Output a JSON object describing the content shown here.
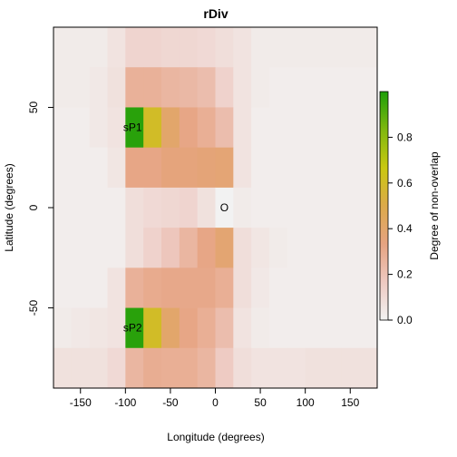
{
  "chart_data": {
    "type": "heatmap",
    "title": "rDiv",
    "xlabel": "Longitude (degrees)",
    "ylabel": "Latitude (degrees)",
    "xlim": [
      -180,
      180
    ],
    "ylim": [
      -90,
      90
    ],
    "x_ticks": [
      -150,
      -100,
      -50,
      0,
      50,
      100,
      150
    ],
    "y_ticks": [
      -50,
      0,
      50
    ],
    "x_tick_labels": [
      "-150",
      "-100",
      "-50",
      "0",
      "50",
      "100",
      "150"
    ],
    "y_tick_labels": [
      "-50",
      "0",
      "50"
    ],
    "cell_width_deg": 20,
    "cell_height_deg": 20,
    "x_centers": [
      -170,
      -150,
      -130,
      -110,
      -90,
      -70,
      -50,
      -30,
      -10,
      10,
      30,
      50,
      70,
      90,
      110,
      130,
      150,
      170
    ],
    "y_centers": [
      80,
      60,
      40,
      20,
      0,
      -20,
      -40,
      -60,
      -80
    ],
    "values": [
      [
        0.03,
        0.03,
        0.03,
        0.06,
        0.12,
        0.12,
        0.11,
        0.11,
        0.1,
        0.08,
        0.06,
        0.03,
        0.03,
        0.03,
        0.03,
        0.03,
        0.03,
        0.03
      ],
      [
        0.03,
        0.03,
        0.04,
        0.07,
        0.27,
        0.27,
        0.25,
        0.24,
        0.22,
        0.13,
        0.06,
        0.03,
        0.02,
        0.02,
        0.02,
        0.02,
        0.02,
        0.02
      ],
      [
        0.02,
        0.02,
        0.04,
        0.06,
        0.98,
        0.6,
        0.4,
        0.32,
        0.28,
        0.22,
        0.06,
        0.02,
        0.02,
        0.02,
        0.02,
        0.02,
        0.02,
        0.02
      ],
      [
        0.02,
        0.02,
        0.02,
        0.05,
        0.32,
        0.32,
        0.35,
        0.35,
        0.36,
        0.37,
        0.06,
        0.02,
        0.02,
        0.02,
        0.02,
        0.02,
        0.02,
        0.02
      ],
      [
        0.02,
        0.02,
        0.02,
        0.02,
        0.08,
        0.1,
        0.11,
        0.12,
        0.07,
        0.0,
        0.03,
        0.02,
        0.02,
        0.02,
        0.02,
        0.02,
        0.02,
        0.02
      ],
      [
        0.02,
        0.02,
        0.02,
        0.02,
        0.08,
        0.13,
        0.18,
        0.25,
        0.32,
        0.38,
        0.08,
        0.05,
        0.03,
        0.02,
        0.02,
        0.02,
        0.02,
        0.02
      ],
      [
        0.02,
        0.02,
        0.02,
        0.06,
        0.27,
        0.3,
        0.31,
        0.31,
        0.31,
        0.28,
        0.08,
        0.04,
        0.02,
        0.02,
        0.02,
        0.02,
        0.02,
        0.02
      ],
      [
        0.03,
        0.04,
        0.05,
        0.06,
        0.98,
        0.6,
        0.4,
        0.32,
        0.28,
        0.22,
        0.06,
        0.03,
        0.02,
        0.02,
        0.02,
        0.02,
        0.02,
        0.02
      ],
      [
        0.07,
        0.07,
        0.07,
        0.1,
        0.25,
        0.29,
        0.28,
        0.28,
        0.25,
        0.16,
        0.08,
        0.06,
        0.06,
        0.06,
        0.07,
        0.07,
        0.07,
        0.07
      ]
    ],
    "annotations": [
      {
        "label": "sP1",
        "x": -92,
        "y": 40
      },
      {
        "label": "O",
        "x": 10,
        "y": 0
      },
      {
        "label": "sP2",
        "x": -92,
        "y": -60
      }
    ],
    "colorbar": {
      "label": "Degree of non-overlap",
      "range": [
        0,
        1
      ],
      "ticks": [
        0.0,
        0.2,
        0.4,
        0.6,
        0.8
      ],
      "tick_labels": [
        "0.0",
        "0.2",
        "0.4",
        "0.6",
        "0.8"
      ],
      "palette": [
        "#f2f2f2",
        "#eec9c1",
        "#e6a381",
        "#dcaa4a",
        "#c9c810",
        "#7fb80f",
        "#1d9e0a"
      ]
    },
    "grid": false,
    "legend_position": "right"
  }
}
